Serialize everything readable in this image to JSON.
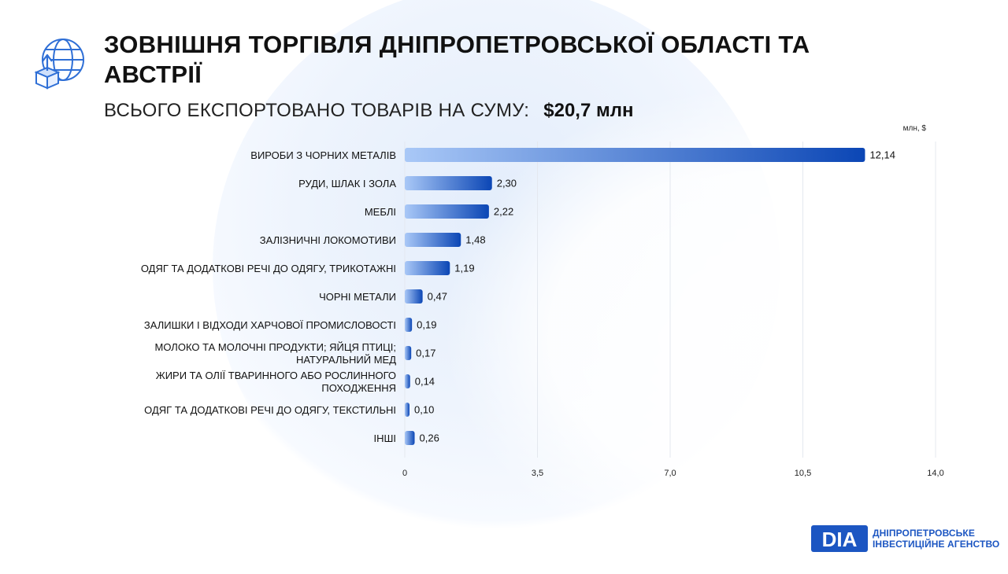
{
  "header": {
    "title": "ЗОВНІШНЯ ТОРГІВЛЯ ДНІПРОПЕТРОВСЬКОЇ ОБЛАСТІ ТА АВСТРІЇ",
    "subtitle_label": "ВСЬОГО ЕКСПОРТОВАНО ТОВАРІВ НА СУМУ:",
    "subtitle_value": "$20,7 млн",
    "icon": "globe-export-box-icon"
  },
  "brand": {
    "logo_text": "DIA",
    "name_line1": "ДНІПРОПЕТРОВСЬКЕ",
    "name_line2": "ІНВЕСТИЦІЙНЕ АГЕНСТВО"
  },
  "colors": {
    "bar_start": "#a9c8f7",
    "bar_end": "#0b46b5",
    "brand_blue": "#1c56c2",
    "icon_blue": "#2f6fd6"
  },
  "chart_data": {
    "type": "bar",
    "orientation": "horizontal",
    "unit_label": "млн, $",
    "categories": [
      "ВИРОБИ З ЧОРНИХ МЕТАЛІВ",
      "РУДИ, ШЛАК І ЗОЛА",
      "МЕБЛІ",
      "ЗАЛІЗНИЧНІ ЛОКОМОТИВИ",
      "ОДЯГ ТА ДОДАТКОВІ РЕЧІ ДО ОДЯГУ, ТРИКОТАЖНІ",
      "ЧОРНІ МЕТАЛИ",
      "ЗАЛИШКИ І ВІДХОДИ ХАРЧОВОЇ ПРОМИСЛОВОСТІ",
      "МОЛОКО ТА МОЛОЧНІ ПРОДУКТИ; ЯЙЦЯ ПТИЦІ; НАТУРАЛЬНИЙ МЕД",
      "ЖИРИ ТА ОЛІЇ ТВАРИННОГО АБО РОСЛИННОГО ПОХОДЖЕННЯ",
      "ОДЯГ ТА ДОДАТКОВІ РЕЧІ ДО ОДЯГУ, ТЕКСТИЛЬНІ",
      "ІНШІ"
    ],
    "category_lines": [
      [
        "ВИРОБИ З ЧОРНИХ МЕТАЛІВ"
      ],
      [
        "РУДИ, ШЛАК І ЗОЛА"
      ],
      [
        "МЕБЛІ"
      ],
      [
        "ЗАЛІЗНИЧНІ ЛОКОМОТИВИ"
      ],
      [
        "ОДЯГ ТА ДОДАТКОВІ РЕЧІ ДО ОДЯГУ, ТРИКОТАЖНІ"
      ],
      [
        "ЧОРНІ МЕТАЛИ"
      ],
      [
        "ЗАЛИШКИ І ВІДХОДИ ХАРЧОВОЇ ПРОМИСЛОВОСТІ"
      ],
      [
        "МОЛОКО ТА МОЛОЧНІ ПРОДУКТИ; ЯЙЦЯ ПТИЦІ;",
        "НАТУРАЛЬНИЙ МЕД"
      ],
      [
        "ЖИРИ ТА ОЛІЇ ТВАРИННОГО АБО РОСЛИННОГО",
        "ПОХОДЖЕННЯ"
      ],
      [
        "ОДЯГ ТА ДОДАТКОВІ РЕЧІ ДО ОДЯГУ, ТЕКСТИЛЬНІ"
      ],
      [
        "ІНШІ"
      ]
    ],
    "values": [
      12.14,
      2.3,
      2.22,
      1.48,
      1.19,
      0.47,
      0.19,
      0.17,
      0.14,
      0.1,
      0.26
    ],
    "value_labels": [
      "12,14",
      "2,30",
      "2,22",
      "1,48",
      "1,19",
      "0,47",
      "0,19",
      "0,17",
      "0,14",
      "0,10",
      "0,26"
    ],
    "xlim": [
      0,
      14.0
    ],
    "xticks": [
      0,
      3.5,
      7.0,
      10.5,
      14.0
    ],
    "xtick_labels": [
      "0",
      "3,5",
      "7,0",
      "10,5",
      "14,0"
    ],
    "grid": true,
    "legend": "none"
  }
}
